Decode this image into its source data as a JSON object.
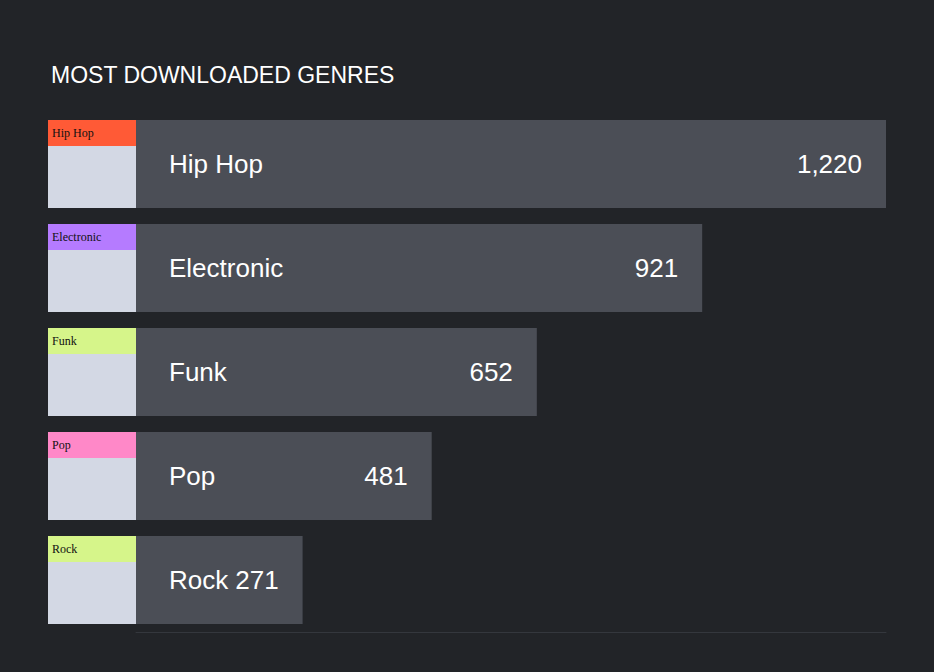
{
  "chart_data": {
    "type": "bar",
    "title": "MOST DOWNLOADED GENRES",
    "orientation": "horizontal",
    "categories": [
      "Hip Hop",
      "Electronic",
      "Funk",
      "Pop",
      "Rock"
    ],
    "values": [
      1220,
      921,
      652,
      481,
      271
    ],
    "value_labels": [
      "1,220",
      "921",
      "652",
      "481",
      "271"
    ],
    "color": "#4b4e56",
    "xlim": [
      0,
      1220
    ],
    "grid": false,
    "data_labels": true,
    "tick_labels": "y"
  }
}
